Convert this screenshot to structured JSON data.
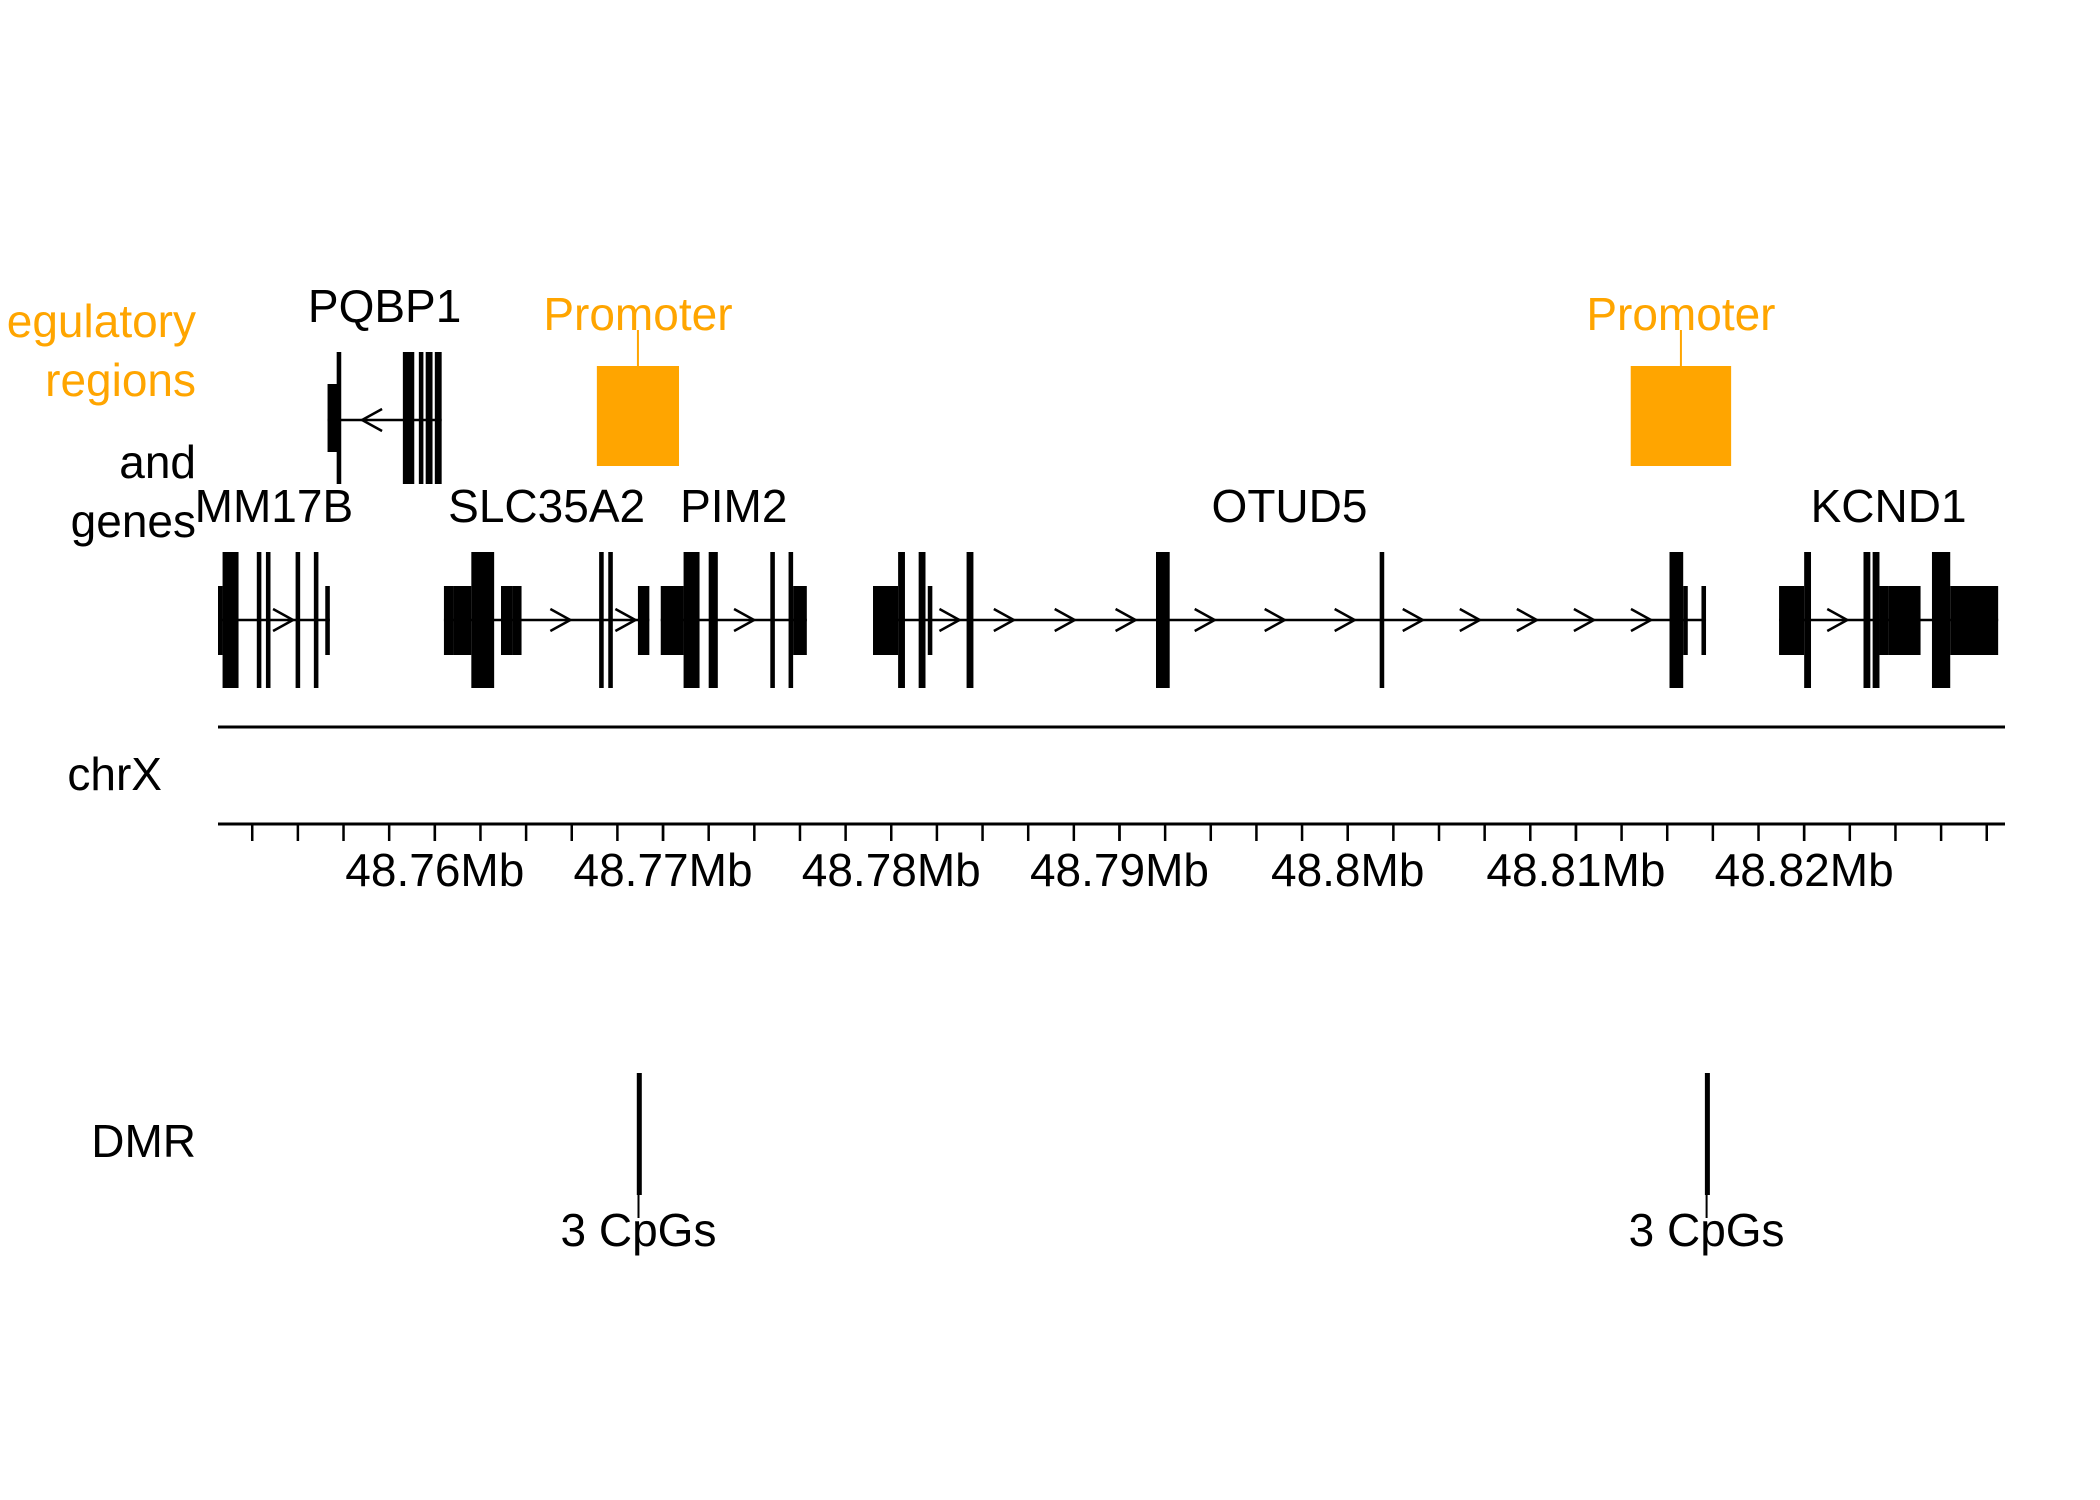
{
  "track_labels": {
    "regulatory_line1": "egulatory",
    "regulatory_line2": "regions",
    "genes_line1": "and",
    "genes_line2": "genes",
    "chromosome": "chrX",
    "dmr": "DMR"
  },
  "colors": {
    "regulatory": "#FFA500",
    "gene": "#000000",
    "axis": "#000000"
  },
  "axis": {
    "unit": "Mb",
    "range_mb": [
      48.7505,
      48.8288
    ],
    "minor_tick_step_mb": 0.002,
    "tick_labels": [
      {
        "label": "48.76Mb",
        "value": 48.76
      },
      {
        "label": "48.77Mb",
        "value": 48.77
      },
      {
        "label": "48.78Mb",
        "value": 48.78
      },
      {
        "label": "48.79Mb",
        "value": 48.79
      },
      {
        "label": "48.8Mb",
        "value": 48.8
      },
      {
        "label": "48.81Mb",
        "value": 48.81
      },
      {
        "label": "48.82Mb",
        "value": 48.82
      }
    ]
  },
  "regulatory_regions": [
    {
      "label": "Promoter",
      "start_mb": 48.7671,
      "end_mb": 48.7707
    },
    {
      "label": "Promoter",
      "start_mb": 48.8124,
      "end_mb": 48.8168
    }
  ],
  "genes": [
    {
      "name": "PQBP1",
      "row": "upper",
      "strand": "+",
      "start_mb": 48.7553,
      "end_mb": 48.7603,
      "exons": [
        {
          "start": 48.7553,
          "end": 48.7558,
          "type": "utr"
        },
        {
          "start": 48.7557,
          "end": 48.7559,
          "type": "tall"
        },
        {
          "start": 48.7586,
          "end": 48.7591,
          "type": "tall"
        },
        {
          "start": 48.7593,
          "end": 48.7595,
          "type": "tall"
        },
        {
          "start": 48.7596,
          "end": 48.7599,
          "type": "tall"
        },
        {
          "start": 48.76,
          "end": 48.7603,
          "type": "tall"
        }
      ]
    },
    {
      "name": "MM17B",
      "row": "lower",
      "strand": "-",
      "start_mb": 48.7505,
      "end_mb": 48.7554,
      "exons": [
        {
          "start": 48.7505,
          "end": 48.7507,
          "type": "utr"
        },
        {
          "start": 48.7507,
          "end": 48.7514,
          "type": "cds"
        },
        {
          "start": 48.7522,
          "end": 48.7524,
          "type": "cds"
        },
        {
          "start": 48.7526,
          "end": 48.7528,
          "type": "cds"
        },
        {
          "start": 48.7539,
          "end": 48.7541,
          "type": "cds"
        },
        {
          "start": 48.7547,
          "end": 48.7549,
          "type": "cds"
        },
        {
          "start": 48.7552,
          "end": 48.7554,
          "type": "utr"
        }
      ]
    },
    {
      "name": "SLC35A2",
      "row": "lower",
      "strand": "-",
      "start_mb": 48.7604,
      "end_mb": 48.7694,
      "exons": [
        {
          "start": 48.7604,
          "end": 48.7608,
          "type": "utr"
        },
        {
          "start": 48.7608,
          "end": 48.7616,
          "type": "utr"
        },
        {
          "start": 48.7616,
          "end": 48.7626,
          "type": "cds"
        },
        {
          "start": 48.7629,
          "end": 48.7634,
          "type": "utr"
        },
        {
          "start": 48.7634,
          "end": 48.7638,
          "type": "utr"
        },
        {
          "start": 48.7672,
          "end": 48.7674,
          "type": "cds"
        },
        {
          "start": 48.7676,
          "end": 48.7678,
          "type": "cds"
        },
        {
          "start": 48.7689,
          "end": 48.7694,
          "type": "utr"
        }
      ]
    },
    {
      "name": "PIM2",
      "row": "lower",
      "strand": "-",
      "start_mb": 48.7699,
      "end_mb": 48.7763,
      "exons": [
        {
          "start": 48.7699,
          "end": 48.7709,
          "type": "utr"
        },
        {
          "start": 48.7709,
          "end": 48.7716,
          "type": "cds"
        },
        {
          "start": 48.772,
          "end": 48.7724,
          "type": "cds"
        },
        {
          "start": 48.7747,
          "end": 48.7749,
          "type": "cds"
        },
        {
          "start": 48.7755,
          "end": 48.7757,
          "type": "cds"
        },
        {
          "start": 48.7757,
          "end": 48.7763,
          "type": "utr"
        }
      ]
    },
    {
      "name": "OTUD5",
      "row": "lower",
      "strand": "-",
      "start_mb": 48.7792,
      "end_mb": 48.8157,
      "exons": [
        {
          "start": 48.7792,
          "end": 48.7803,
          "type": "utr"
        },
        {
          "start": 48.7803,
          "end": 48.7806,
          "type": "cds"
        },
        {
          "start": 48.7812,
          "end": 48.7815,
          "type": "cds"
        },
        {
          "start": 48.7816,
          "end": 48.7818,
          "type": "utr"
        },
        {
          "start": 48.7833,
          "end": 48.7836,
          "type": "cds"
        },
        {
          "start": 48.7916,
          "end": 48.7922,
          "type": "cds"
        },
        {
          "start": 48.8014,
          "end": 48.8016,
          "type": "cds"
        },
        {
          "start": 48.8141,
          "end": 48.8147,
          "type": "cds"
        },
        {
          "start": 48.8147,
          "end": 48.8149,
          "type": "utr"
        },
        {
          "start": 48.8155,
          "end": 48.8157,
          "type": "utr"
        }
      ]
    },
    {
      "name": "KCND1",
      "row": "lower",
      "strand": "-",
      "start_mb": 48.8189,
      "end_mb": 48.8285,
      "exons": [
        {
          "start": 48.8189,
          "end": 48.82,
          "type": "utr"
        },
        {
          "start": 48.82,
          "end": 48.8203,
          "type": "cds"
        },
        {
          "start": 48.8226,
          "end": 48.8229,
          "type": "cds"
        },
        {
          "start": 48.823,
          "end": 48.8233,
          "type": "cds"
        },
        {
          "start": 48.8233,
          "end": 48.8237,
          "type": "utr"
        },
        {
          "start": 48.8237,
          "end": 48.8251,
          "type": "utr"
        },
        {
          "start": 48.8256,
          "end": 48.8264,
          "type": "cds"
        },
        {
          "start": 48.8264,
          "end": 48.8285,
          "type": "utr"
        }
      ]
    }
  ],
  "dmrs": [
    {
      "label": "3 CpGs",
      "start_mb": 48.76885,
      "end_mb": 48.769
    },
    {
      "label": "3 CpGs",
      "start_mb": 48.81565,
      "end_mb": 48.8158
    }
  ]
}
